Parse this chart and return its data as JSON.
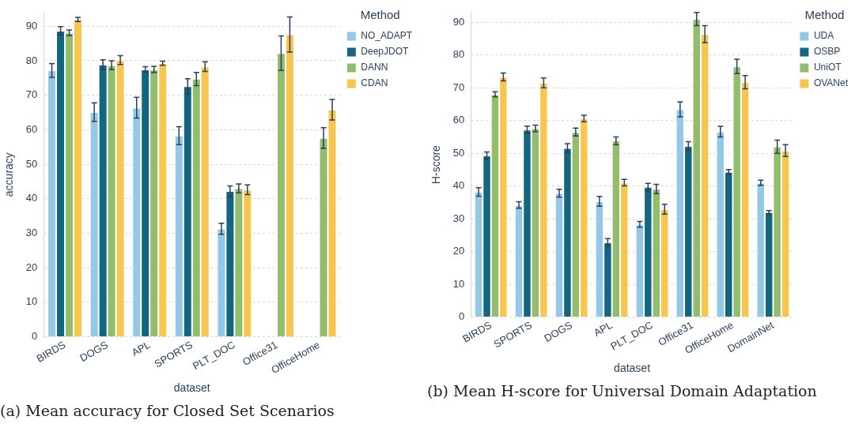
{
  "chart_data": [
    {
      "type": "bar",
      "xlabel": "dataset",
      "ylabel": "accuracy",
      "legend_title": "Method",
      "legend": "top right",
      "grid": "y",
      "ylim": [
        0,
        94
      ],
      "yticks": [
        0,
        10,
        20,
        30,
        40,
        50,
        60,
        70,
        80,
        90
      ],
      "categories": [
        "BIRDS",
        "DOGS",
        "APL",
        "SPORTS",
        "PLT_DOC",
        "Office31",
        "OfficeHome"
      ],
      "annotations": [
        "(a) Mean accuracy for Closed Set Scenarios"
      ],
      "series": [
        {
          "name": "NO_ADAPT",
          "color": "#93c9e6",
          "values": [
            77.2,
            65.1,
            66.4,
            58.3,
            31.3,
            null,
            null
          ],
          "errors": [
            2,
            2.7,
            3,
            2.6,
            1.6,
            null,
            null
          ]
        },
        {
          "name": "DeepJDOT",
          "color": "#136680",
          "values": [
            88.7,
            78.9,
            77.5,
            72.6,
            42.2,
            null,
            null
          ],
          "errors": [
            1.2,
            1.4,
            0.8,
            2.2,
            1.5,
            null,
            null
          ]
        },
        {
          "name": "DANN",
          "color": "#93bd6c",
          "values": [
            88.1,
            78.7,
            77.5,
            74.7,
            43.0,
            82.2,
            57.6
          ],
          "errors": [
            0.8,
            1.3,
            0.9,
            1.9,
            1.3,
            5,
            3
          ]
        },
        {
          "name": "CDAN",
          "color": "#f7c64f",
          "values": [
            92.0,
            80.2,
            79.3,
            78.3,
            42.6,
            87.6,
            65.8
          ],
          "errors": [
            0.6,
            1.3,
            0.6,
            1.4,
            1.4,
            5.1,
            3
          ]
        }
      ]
    },
    {
      "type": "bar",
      "xlabel": "dataset",
      "ylabel": "H-score",
      "legend_title": "Method",
      "legend": "top right",
      "grid": "y",
      "ylim": [
        0,
        93
      ],
      "yticks": [
        0,
        10,
        20,
        30,
        40,
        50,
        60,
        70,
        80,
        90
      ],
      "categories": [
        "BIRDS",
        "SPORTS",
        "DOGS",
        "APL",
        "PLT_DOC",
        "Office31",
        "OfficeHome",
        "DomainNet"
      ],
      "annotations": [
        "(b) Mean H-score for Universal Domain Adaptation"
      ],
      "series": [
        {
          "name": "UDA",
          "color": "#93c9e6",
          "values": [
            38.2,
            34.2,
            37.8,
            35.3,
            28.3,
            63.4,
            56.6,
            41.0
          ],
          "errors": [
            1.3,
            1,
            1.2,
            1.5,
            0.9,
            2.3,
            1.6,
            0.8
          ]
        },
        {
          "name": "OSBP",
          "color": "#136680",
          "values": [
            49.3,
            57.2,
            51.6,
            22.8,
            39.7,
            52.2,
            44.3,
            32.0
          ],
          "errors": [
            1.1,
            1.1,
            1.3,
            1.1,
            1.1,
            1.3,
            0.7,
            0.5
          ]
        },
        {
          "name": "UniOT",
          "color": "#93bd6c",
          "values": [
            68.0,
            57.6,
            56.5,
            53.8,
            39.1,
            91.0,
            76.5,
            52.0
          ],
          "errors": [
            0.8,
            1,
            1.2,
            1.2,
            1.4,
            2,
            2.2,
            2
          ]
        },
        {
          "name": "OVANet",
          "color": "#f7c64f",
          "values": [
            73.3,
            71.5,
            60.6,
            41.0,
            32.9,
            86.4,
            71.7,
            50.8
          ],
          "errors": [
            1.2,
            1.5,
            1,
            1,
            1.5,
            2.6,
            2,
            1.8
          ]
        }
      ]
    }
  ]
}
